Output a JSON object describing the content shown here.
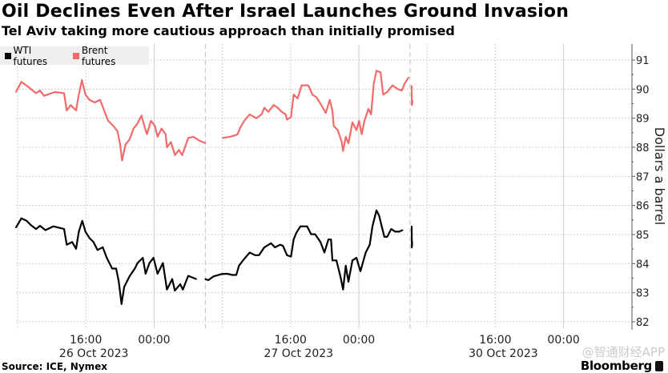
{
  "header": {
    "title": "Oil Declines Even After Israel Launches Ground Invasion",
    "subtitle": "Tel Aviv taking more cautious approach than initially promised"
  },
  "footer": {
    "source": "Source: ICE, Nymex",
    "brand": "Bloomberg",
    "watermark": "@智通财经APP"
  },
  "chart_data": {
    "type": "line",
    "title": "Oil Declines Even After Israel Launches Ground Invasion",
    "subtitle": "Tel Aviv taking more cautious approach than initially promised",
    "xlabel": "",
    "x_units": "trading hours since 26 Oct 2023 00:00 (weekend compressed; 54 = 30 Oct 06:00 session start)",
    "ylabel": "Dollars a barrel",
    "xlim": [
      7.8,
      79.2
    ],
    "ylim": [
      82,
      91
    ],
    "y_ticks": [
      "82",
      "83",
      "84",
      "85",
      "86",
      "87",
      "88",
      "89",
      "90",
      "91"
    ],
    "y_tick_values": [
      82,
      83,
      84,
      85,
      86,
      87,
      88,
      89,
      90,
      91
    ],
    "x_ticks": [
      {
        "x": 16,
        "label": "16:00",
        "date": "26 Oct 2023"
      },
      {
        "x": 24,
        "label": "00:00",
        "date": ""
      },
      {
        "x": 40,
        "label": "16:00",
        "date": "27 Oct 2023"
      },
      {
        "x": 48,
        "label": "00:00",
        "date": ""
      },
      {
        "x": 64,
        "label": "16:00",
        "date": "30 Oct 2023"
      },
      {
        "x": 72,
        "label": "00:00",
        "date": ""
      }
    ],
    "minor_gridlines_x": [
      8,
      32,
      56
    ],
    "midnight_gridlines_x": [
      24,
      48,
      72
    ],
    "session_breaks_x": [
      30,
      54
    ],
    "grid": true,
    "legend_position": "top-left",
    "series": [
      {
        "name": "WTI futures",
        "color": "#000000",
        "points": [
          [
            7.8,
            85.24
          ],
          [
            8.44,
            85.56
          ],
          [
            9.06,
            85.47
          ],
          [
            9.53,
            85.33
          ],
          [
            10.16,
            85.19
          ],
          [
            10.63,
            85.3
          ],
          [
            11.26,
            85.15
          ],
          [
            12.2,
            85.28
          ],
          [
            13.45,
            85.19
          ],
          [
            13.76,
            84.65
          ],
          [
            14.39,
            84.74
          ],
          [
            14.85,
            84.51
          ],
          [
            15.17,
            85.1
          ],
          [
            15.58,
            85.47
          ],
          [
            15.95,
            85.1
          ],
          [
            16.42,
            84.88
          ],
          [
            16.89,
            84.74
          ],
          [
            17.36,
            84.47
          ],
          [
            17.98,
            84.56
          ],
          [
            18.45,
            84.2
          ],
          [
            19.08,
            83.83
          ],
          [
            19.55,
            83.83
          ],
          [
            19.86,
            83.38
          ],
          [
            20.18,
            82.61
          ],
          [
            20.5,
            83.2
          ],
          [
            21.12,
            83.56
          ],
          [
            21.74,
            83.83
          ],
          [
            22.06,
            84.02
          ],
          [
            22.68,
            84.2
          ],
          [
            23.0,
            83.65
          ],
          [
            23.46,
            84.02
          ],
          [
            23.93,
            84.2
          ],
          [
            24.4,
            83.65
          ],
          [
            25.03,
            84.02
          ],
          [
            25.5,
            83.11
          ],
          [
            26.12,
            83.47
          ],
          [
            26.43,
            83.07
          ],
          [
            27.06,
            83.29
          ],
          [
            27.37,
            83.11
          ],
          [
            28.0,
            83.58
          ],
          [
            28.94,
            83.47
          ],
          null,
          [
            30.0,
            83.47
          ],
          [
            30.35,
            83.43
          ],
          [
            30.97,
            83.56
          ],
          [
            31.9,
            83.64
          ],
          [
            32.54,
            83.65
          ],
          [
            33.16,
            83.61
          ],
          [
            33.63,
            83.61
          ],
          [
            33.95,
            83.93
          ],
          [
            34.42,
            84.11
          ],
          [
            35.2,
            84.38
          ],
          [
            35.83,
            84.29
          ],
          [
            36.3,
            84.29
          ],
          [
            36.92,
            84.56
          ],
          [
            37.7,
            84.7
          ],
          [
            38.17,
            84.56
          ],
          [
            38.8,
            84.65
          ],
          [
            39.11,
            84.61
          ],
          [
            39.58,
            84.29
          ],
          [
            40.05,
            84.24
          ],
          [
            40.36,
            84.83
          ],
          [
            40.68,
            85.06
          ],
          [
            41.15,
            85.28
          ],
          [
            41.93,
            85.28
          ],
          [
            42.4,
            85.01
          ],
          [
            42.87,
            85.01
          ],
          [
            43.5,
            84.74
          ],
          [
            43.96,
            84.38
          ],
          [
            44.43,
            84.83
          ],
          [
            44.74,
            84.83
          ],
          [
            44.9,
            84.11
          ],
          [
            45.37,
            84.11
          ],
          [
            45.84,
            83.56
          ],
          [
            46.15,
            83.11
          ],
          [
            46.47,
            83.93
          ],
          [
            46.78,
            83.38
          ],
          [
            47.25,
            84.11
          ],
          [
            47.72,
            84.2
          ],
          [
            48.19,
            83.74
          ],
          [
            48.81,
            84.38
          ],
          [
            49.28,
            84.65
          ],
          [
            49.6,
            85.28
          ],
          [
            50.07,
            85.83
          ],
          [
            50.38,
            85.65
          ],
          [
            50.69,
            85.28
          ],
          [
            51.0,
            84.92
          ],
          [
            51.32,
            84.92
          ],
          [
            51.79,
            85.19
          ],
          [
            52.26,
            85.1
          ],
          [
            52.73,
            85.1
          ],
          [
            53.13,
            85.15
          ],
          null,
          [
            54.2,
            85.28
          ],
          [
            54.22,
            84.56
          ],
          [
            54.25,
            84.74
          ]
        ]
      },
      {
        "name": "Brent futures",
        "color": "#f26b6b",
        "points": [
          [
            7.8,
            89.9
          ],
          [
            8.44,
            90.25
          ],
          [
            9.22,
            90.08
          ],
          [
            10.16,
            89.86
          ],
          [
            10.63,
            89.95
          ],
          [
            11.1,
            89.77
          ],
          [
            12.35,
            89.9
          ],
          [
            13.45,
            89.86
          ],
          [
            13.76,
            89.27
          ],
          [
            14.23,
            89.45
          ],
          [
            14.85,
            89.27
          ],
          [
            15.17,
            89.81
          ],
          [
            15.54,
            90.31
          ],
          [
            15.95,
            89.81
          ],
          [
            16.42,
            89.63
          ],
          [
            17.04,
            89.54
          ],
          [
            17.67,
            89.63
          ],
          [
            18.14,
            89.27
          ],
          [
            18.61,
            88.91
          ],
          [
            19.24,
            88.73
          ],
          [
            19.71,
            88.55
          ],
          [
            20.02,
            88.09
          ],
          [
            20.24,
            87.55
          ],
          [
            20.65,
            88.09
          ],
          [
            21.12,
            88.27
          ],
          [
            21.59,
            88.64
          ],
          [
            22.06,
            88.82
          ],
          [
            22.53,
            89.09
          ],
          [
            22.85,
            88.73
          ],
          [
            23.16,
            88.45
          ],
          [
            23.63,
            88.91
          ],
          [
            24.1,
            88.73
          ],
          [
            24.4,
            88.36
          ],
          [
            24.87,
            88.64
          ],
          [
            25.35,
            88.45
          ],
          [
            25.5,
            88.0
          ],
          [
            25.97,
            88.18
          ],
          [
            26.44,
            87.73
          ],
          [
            26.9,
            87.91
          ],
          [
            27.3,
            87.73
          ],
          [
            28.0,
            88.32
          ],
          [
            28.6,
            88.36
          ],
          [
            29.3,
            88.23
          ],
          [
            30.0,
            88.14
          ],
          null,
          [
            32.0,
            88.32
          ],
          [
            32.85,
            88.36
          ],
          [
            33.48,
            88.41
          ],
          [
            33.79,
            88.45
          ],
          [
            34.1,
            88.68
          ],
          [
            34.57,
            88.91
          ],
          [
            35.2,
            89.13
          ],
          [
            35.98,
            89.0
          ],
          [
            36.6,
            89.13
          ],
          [
            36.92,
            89.36
          ],
          [
            37.39,
            89.22
          ],
          [
            38.02,
            89.45
          ],
          [
            38.49,
            89.36
          ],
          [
            38.96,
            89.22
          ],
          [
            39.43,
            89.13
          ],
          [
            39.58,
            88.95
          ],
          [
            40.05,
            89.04
          ],
          [
            40.36,
            89.81
          ],
          [
            40.83,
            89.68
          ],
          [
            41.3,
            90.13
          ],
          [
            42.08,
            90.13
          ],
          [
            42.55,
            89.81
          ],
          [
            43.02,
            89.72
          ],
          [
            43.5,
            89.5
          ],
          [
            44.12,
            89.18
          ],
          [
            44.59,
            89.63
          ],
          [
            44.9,
            89.27
          ],
          [
            45.06,
            88.73
          ],
          [
            45.53,
            88.59
          ],
          [
            46.0,
            88.18
          ],
          [
            46.15,
            87.87
          ],
          [
            46.47,
            88.36
          ],
          [
            46.78,
            88.14
          ],
          [
            47.25,
            88.86
          ],
          [
            47.72,
            88.59
          ],
          [
            48.03,
            88.91
          ],
          [
            48.34,
            88.45
          ],
          [
            48.66,
            88.91
          ],
          [
            49.13,
            89.32
          ],
          [
            49.44,
            89.13
          ],
          [
            49.75,
            90.18
          ],
          [
            50.07,
            90.63
          ],
          [
            50.54,
            90.58
          ],
          [
            50.85,
            89.81
          ],
          [
            51.32,
            89.9
          ],
          [
            51.94,
            90.13
          ],
          [
            52.57,
            90.0
          ],
          [
            53.04,
            89.95
          ],
          [
            53.35,
            90.18
          ],
          [
            53.82,
            90.4
          ],
          null,
          [
            54.2,
            90.11
          ],
          [
            54.22,
            89.45
          ],
          [
            54.3,
            89.59
          ]
        ]
      }
    ]
  }
}
